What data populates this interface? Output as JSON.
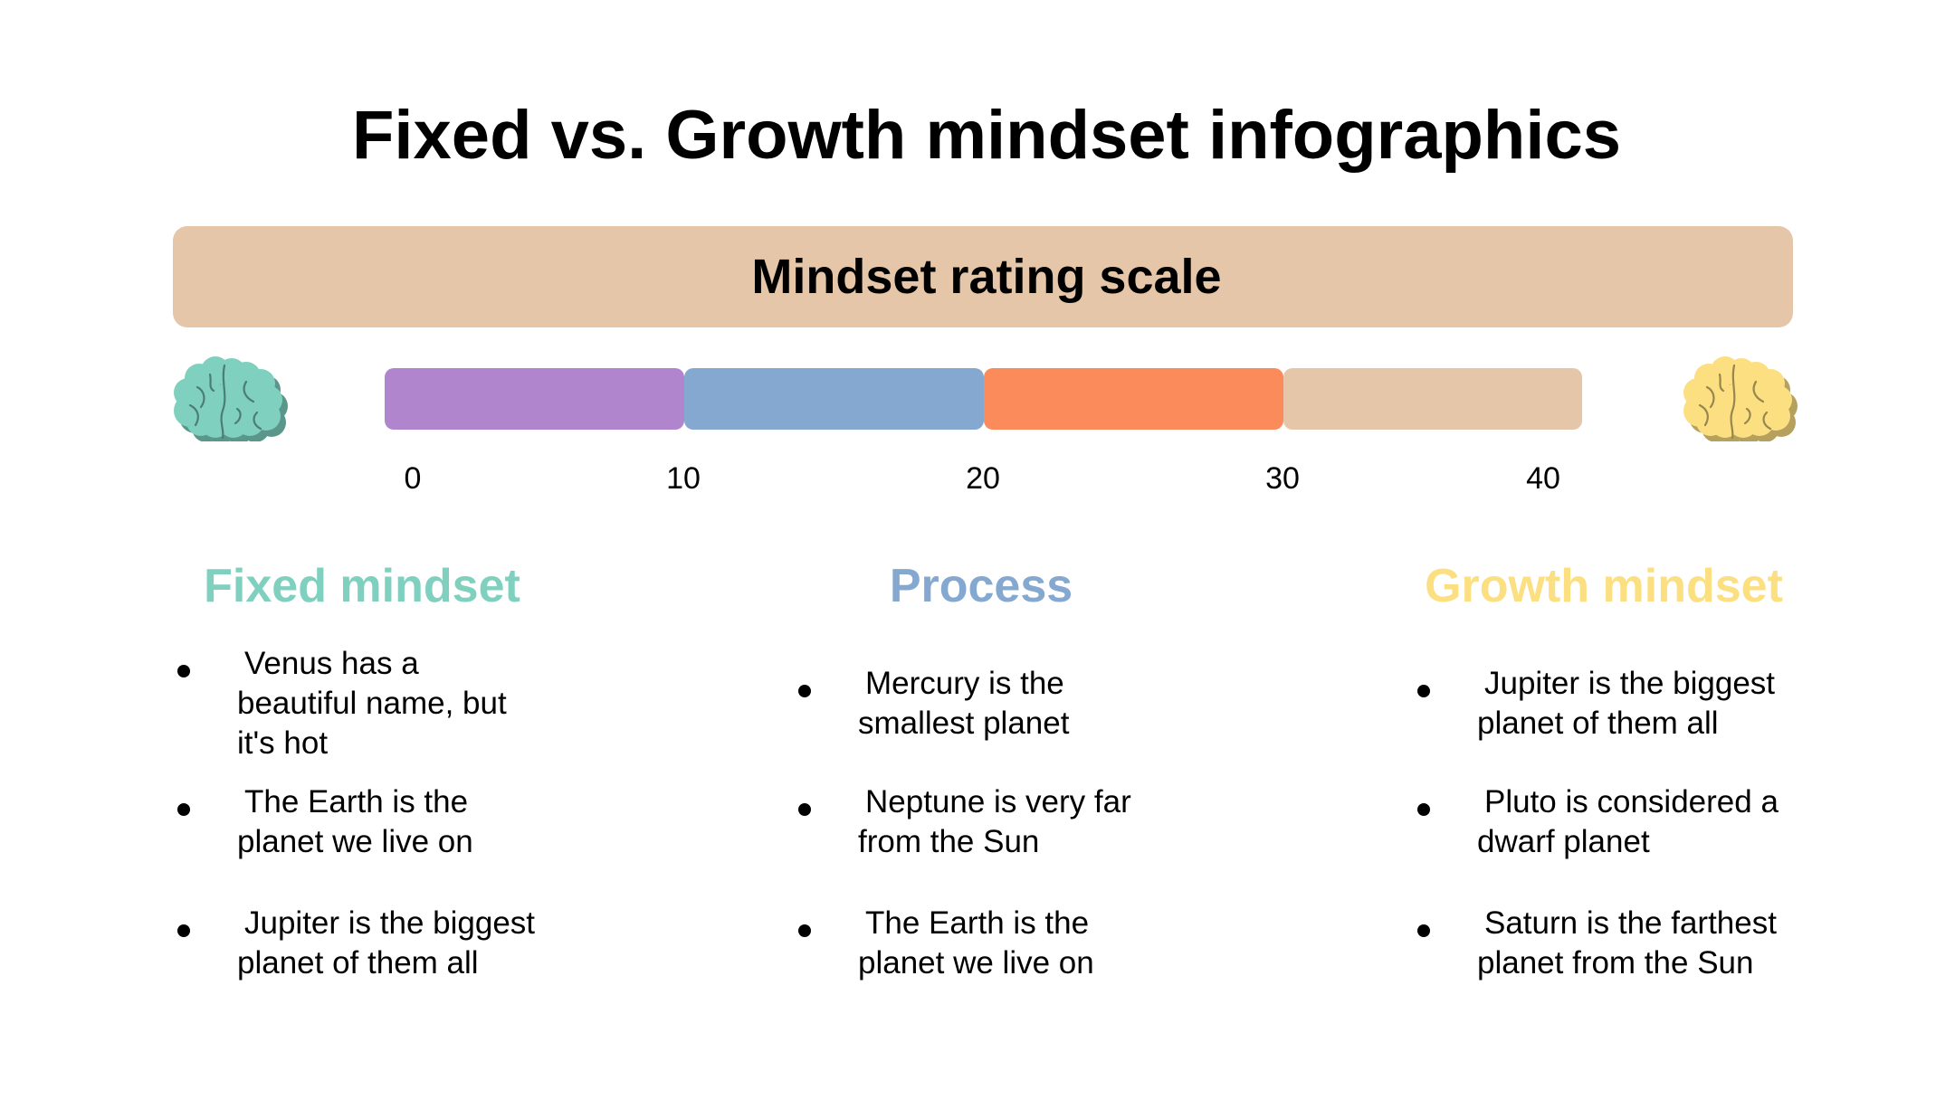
{
  "title": "Fixed vs. Growth mindset infographics",
  "scale": {
    "label": "Mindset rating scale",
    "segments": [
      {
        "from": 0,
        "to": 10,
        "color": "#b085ce"
      },
      {
        "from": 10,
        "to": 20,
        "color": "#85a8d0"
      },
      {
        "from": 20,
        "to": 30,
        "color": "#fc8b5c"
      },
      {
        "from": 30,
        "to": 40,
        "color": "#e5c6a8"
      }
    ],
    "ticks": [
      "0",
      "10",
      "20",
      "30",
      "40"
    ]
  },
  "icons": {
    "left": {
      "name": "brain-icon",
      "color": "#7fd0bf"
    },
    "right": {
      "name": "brain-icon",
      "color": "#fbdf81"
    }
  },
  "columns": [
    {
      "heading": "Fixed mindset",
      "color": "#7fd0bf",
      "items": [
        "Venus has a beautiful name, but it's hot",
        "The Earth is the planet we live on",
        "Jupiter is the biggest planet of them all"
      ]
    },
    {
      "heading": "Process",
      "color": "#85a8d0",
      "items": [
        "Mercury is the smallest planet",
        "Neptune is very far from the Sun",
        "The Earth is the planet we live on"
      ]
    },
    {
      "heading": "Growth mindset",
      "color": "#fbdf81",
      "items": [
        "Jupiter is the biggest planet of them all",
        "Pluto is considered a dwarf planet",
        "Saturn is the farthest planet from the Sun"
      ]
    }
  ]
}
